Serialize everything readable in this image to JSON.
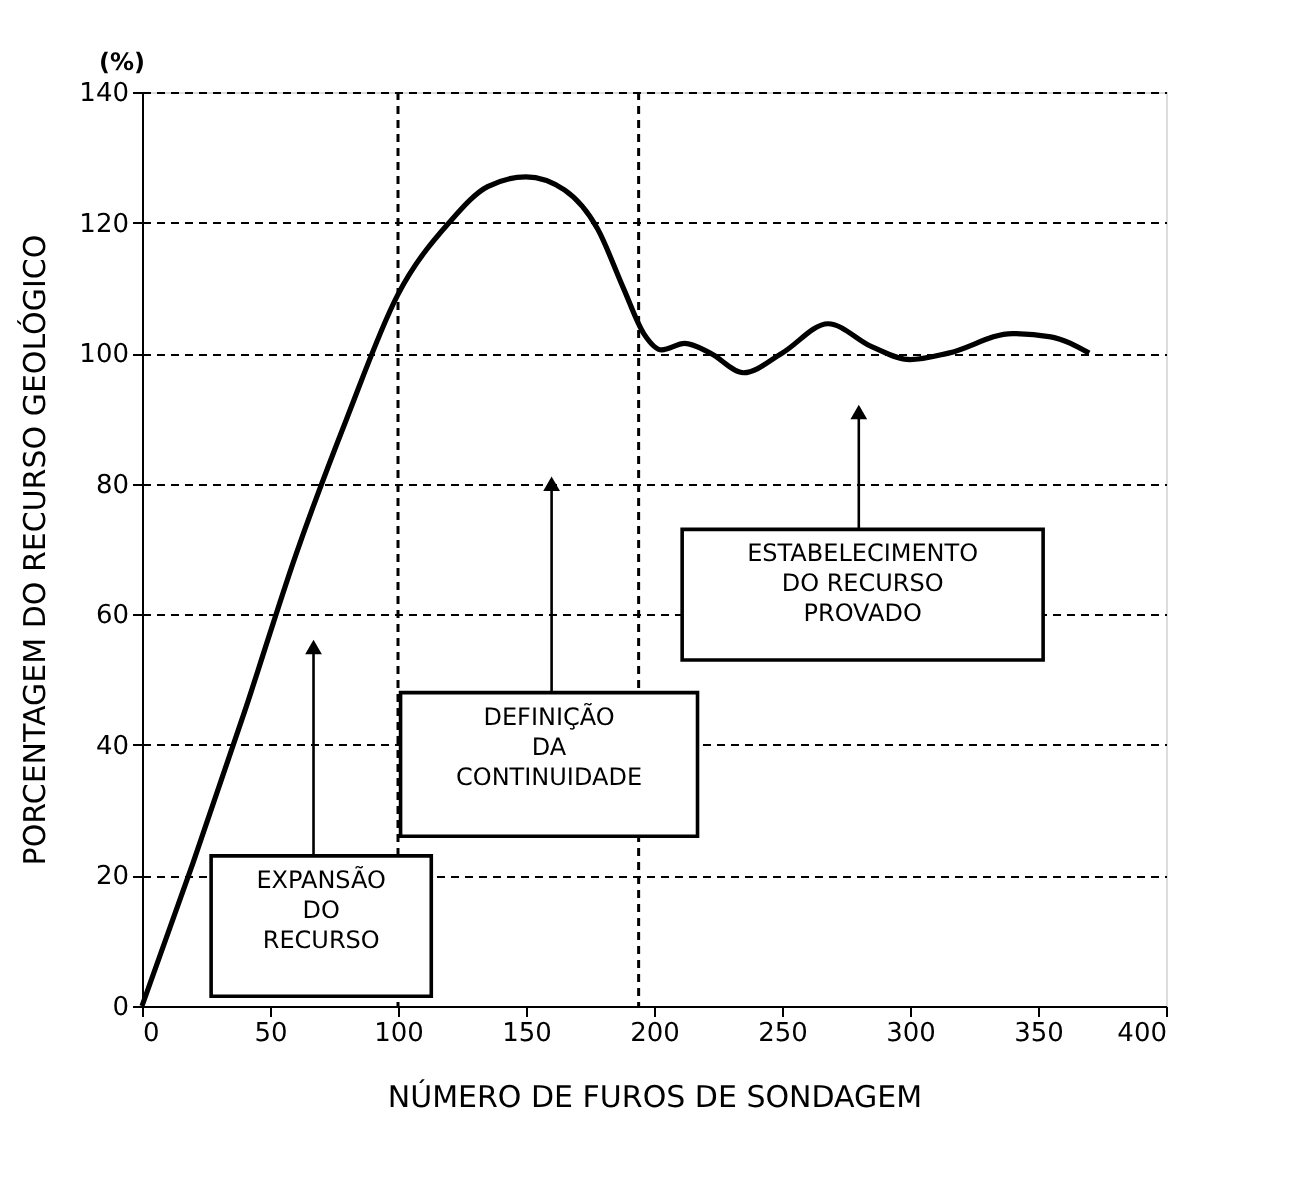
{
  "chart_data": {
    "type": "line",
    "xlabel": "NÚMERO DE FUROS DE SONDAGEM",
    "ylabel": "PORCENTAGEM DO RECURSO GEOLÓGICO",
    "x": [
      0,
      20,
      40,
      60,
      80,
      100,
      120,
      135,
      150,
      165,
      178,
      188,
      196,
      203,
      212,
      222,
      235,
      250,
      268,
      285,
      300,
      315,
      340,
      355,
      370
    ],
    "series": [
      {
        "color": "#000000",
        "values": [
          0,
          22,
          45,
          69,
          90,
          109,
          120,
          125.5,
          127,
          125,
          119,
          110,
          103,
          100.5,
          101.5,
          100,
          97,
          100,
          104.5,
          101,
          99,
          100,
          103,
          102.5,
          100
        ]
      }
    ],
    "xlim": [
      0,
      400
    ],
    "ylim": [
      0,
      140
    ],
    "xticks": [
      0,
      50,
      100,
      150,
      200,
      250,
      300,
      350,
      400
    ],
    "yticks": [
      0,
      20,
      40,
      60,
      80,
      100,
      120,
      140
    ],
    "grid": "y",
    "marker": "none",
    "line_style": "solid",
    "ref_lines": [
      {
        "axis": "x",
        "value": 100,
        "line_style": "dashed"
      },
      {
        "axis": "x",
        "value": 194,
        "line_style": "dashed"
      }
    ],
    "annotations": [
      "EXPANSÃO\nDO\nRECURSO",
      "DEFINIÇÃO\nDA\nCONTINUIDADE",
      "ESTABELECIMENTO\nDO RECURSO\nPROVADO",
      "(%)"
    ]
  }
}
